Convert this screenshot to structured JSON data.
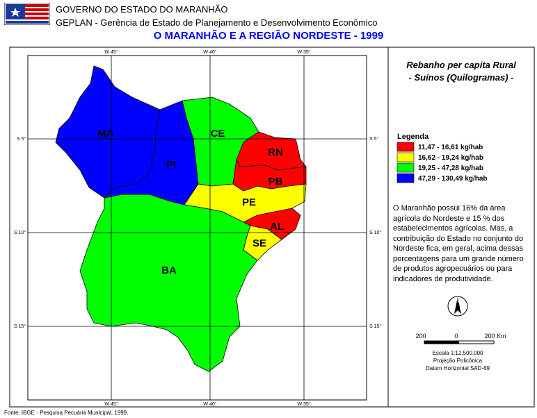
{
  "header": {
    "line1": "GOVERNO DO ESTADO DO MARANHÃO",
    "line2": "GEPLAN - Gerência de Estado de Planejamento e Desenvolvimento Econômico",
    "title": "O MARANHÃO E A REGIÃO NORDESTE - 1999"
  },
  "map": {
    "graticule": {
      "top": [
        "W 45°",
        "W 40°",
        "W 35°"
      ],
      "bottom": [
        "W 45°",
        "W 40°",
        "W 35°"
      ],
      "left": [
        "S 5°",
        "S 10°",
        "S 15°"
      ],
      "right": [
        "S 5°",
        "S 10°",
        "S 15°"
      ]
    },
    "states": [
      {
        "label": "MA",
        "color": "#0000ff"
      },
      {
        "label": "PI",
        "color": "#0000ff"
      },
      {
        "label": "CE",
        "color": "#00ff00"
      },
      {
        "label": "RN",
        "color": "#ff0000"
      },
      {
        "label": "PB",
        "color": "#ff0000"
      },
      {
        "label": "PE",
        "color": "#ffff00"
      },
      {
        "label": "AL",
        "color": "#ff0000"
      },
      {
        "label": "SE",
        "color": "#ffff00"
      },
      {
        "label": "BA",
        "color": "#00ff00"
      }
    ]
  },
  "panel": {
    "title_line1": "Rebanho per capita Rural",
    "title_line2": "- Suínos (Quilogramas) -",
    "legend": {
      "title": "Legenda",
      "items": [
        {
          "label": "11,47 - 16,61 kg/hab",
          "color": "#ff0000"
        },
        {
          "label": "16,62 - 19,24 kg/hab",
          "color": "#ffff00"
        },
        {
          "label": "19,25 - 47,28 kg/hab",
          "color": "#00ff00"
        },
        {
          "label": "47,29 - 130,49 kg/hab",
          "color": "#0000ff"
        }
      ]
    },
    "text": "O Maranhão possui 16% da área agrícola do Nordeste e 15 % dos estabelecimentos agrícolas. Mas, a contribuição do Estado no conjunto do Nordeste fica, em geral, acima dessas porcentagens para um grande número de produtos agropecuários ou para indicadores de produtividade.",
    "north": "N",
    "scale": {
      "ticks": [
        "200",
        "0",
        "200 Km"
      ],
      "lines": [
        "Escala 1:12.500.000",
        "Projeção Policônica",
        "Datum Horizontal SAD-69"
      ]
    }
  },
  "footer": "Fonte: IBGE - Pesquisa Pecuária Municipal, 1999."
}
